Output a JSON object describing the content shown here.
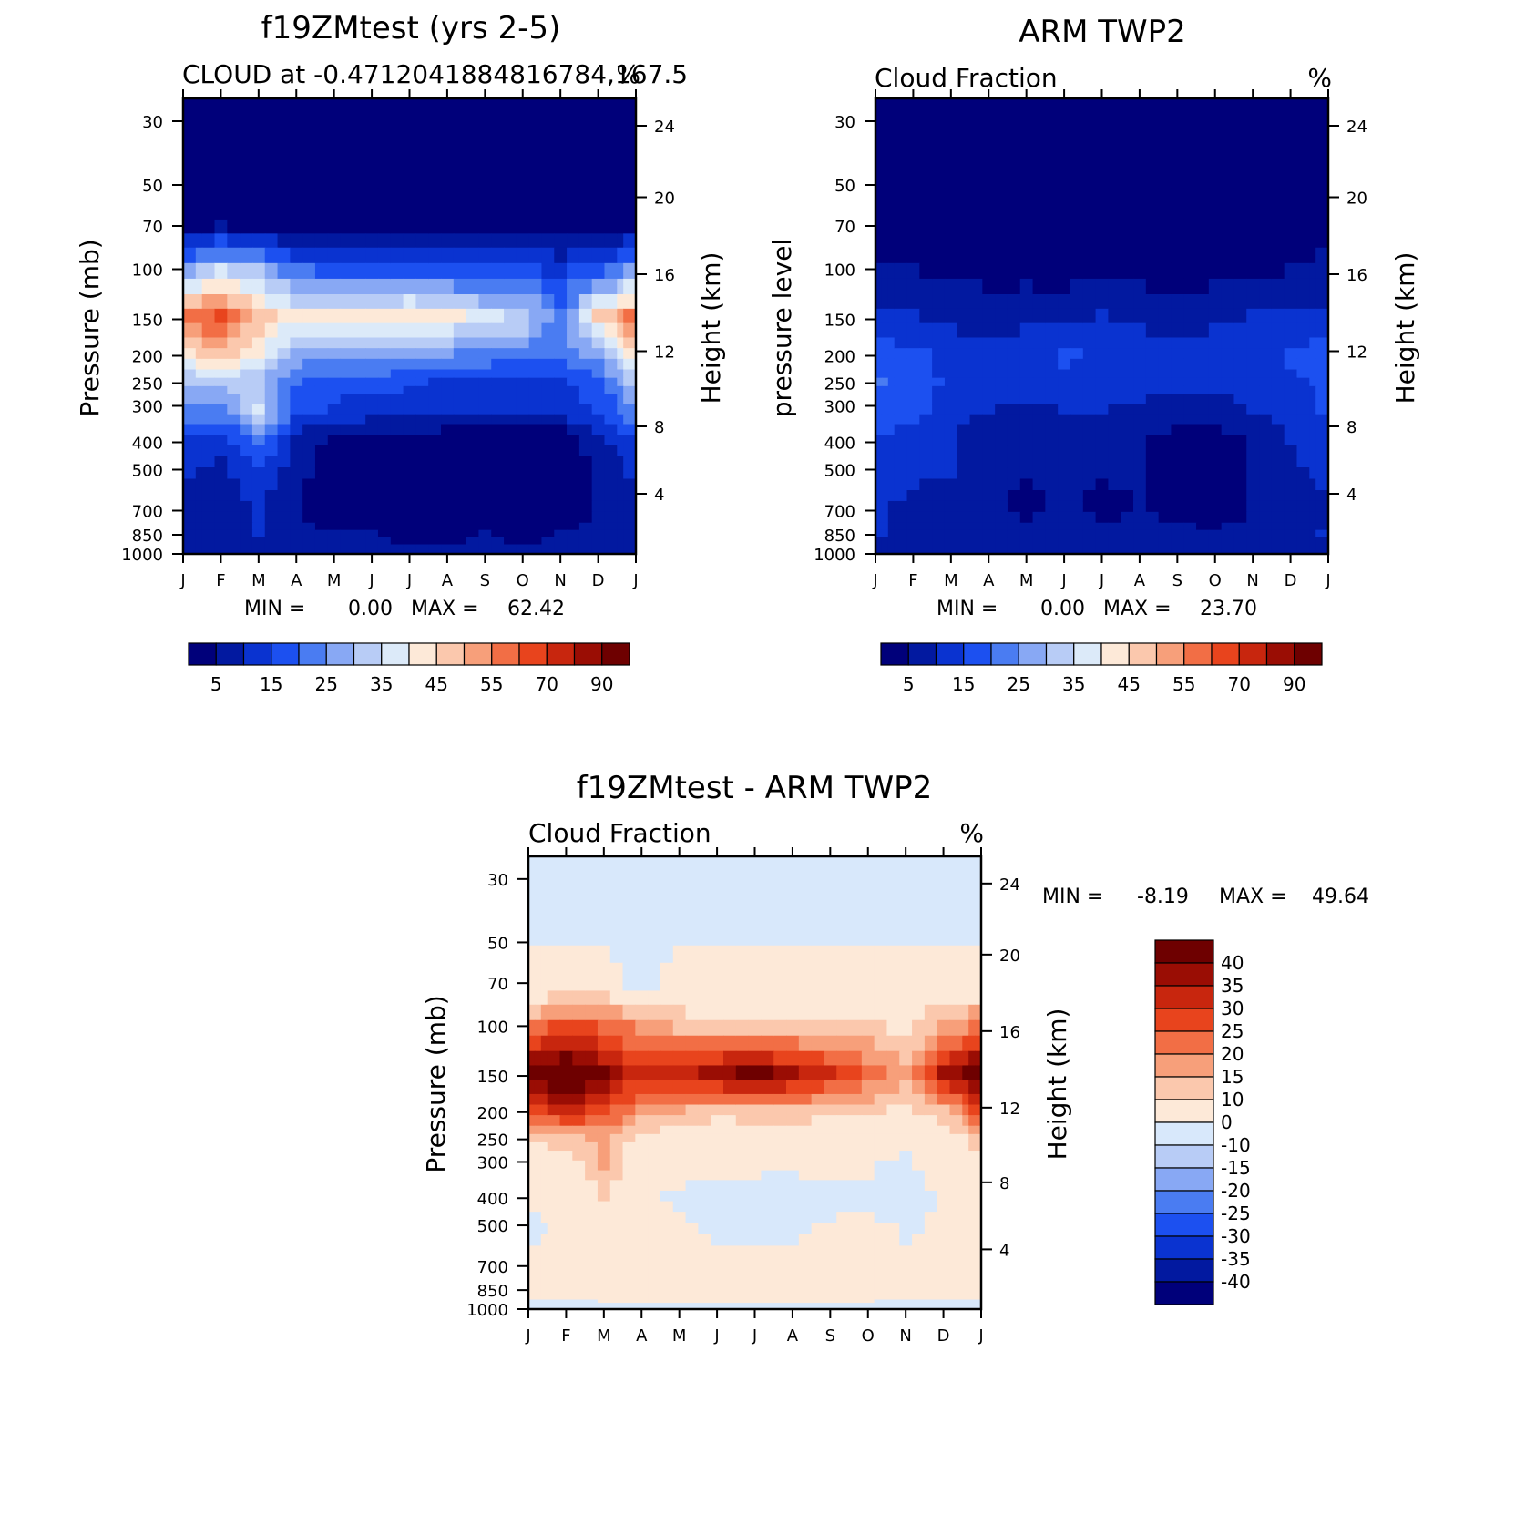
{
  "colors": {
    "seq": [
      "#00007a",
      "#0219a0",
      "#0a33d0",
      "#1c50f0",
      "#4a7cf2",
      "#88a8f4",
      "#b8ccf6",
      "#dceaf9",
      "#fde9d8",
      "#fbc8ad",
      "#f79f7a",
      "#f26e45",
      "#e8441d",
      "#c8260e",
      "#9a0d04",
      "#6e0000"
    ],
    "div": [
      "#00007a",
      "#0219a0",
      "#0a33d0",
      "#1c50f0",
      "#4a7cf2",
      "#88a8f4",
      "#b8ccf6",
      "#d8e8fb",
      "#fde9d8",
      "#fbc8ad",
      "#f79f7a",
      "#f26e45",
      "#e8441d",
      "#c8260e",
      "#9a0d04",
      "#6e0000"
    ]
  },
  "chart_data": [
    {
      "type": "heatmap",
      "title": "f19ZMtest (yrs 2-5)",
      "subtitle_left": "CLOUD at -0.4712041884816784,167.5",
      "subtitle_right": "%",
      "ylabel": "Pressure (mb)",
      "ylabel_right": "Height (km)",
      "x_ticks": [
        "J",
        "F",
        "M",
        "A",
        "M",
        "J",
        "J",
        "A",
        "S",
        "O",
        "N",
        "D",
        "J"
      ],
      "y_ticks": [
        "30",
        "50",
        "70",
        "100",
        "150",
        "200",
        "250",
        "300",
        "400",
        "500",
        "700",
        "850",
        "1000"
      ],
      "height_ticks": [
        "24",
        "20",
        "16",
        "12",
        "8",
        "4"
      ],
      "stats": {
        "min_label": "MIN =",
        "min": "0.00",
        "max_label": "MAX =",
        "max": "62.42"
      },
      "levels": [
        "5",
        "15",
        "25",
        "35",
        "45",
        "55",
        "70",
        "90"
      ],
      "level_breaks": [
        0,
        5,
        10,
        15,
        20,
        25,
        30,
        35,
        40,
        45,
        50,
        55,
        60,
        70,
        80,
        90
      ],
      "colorbar": "horizontal",
      "z": [
        [
          0,
          0,
          0,
          0,
          0,
          0,
          0,
          0,
          0,
          0,
          0,
          0,
          0
        ],
        [
          0,
          0,
          0,
          0,
          0,
          0,
          0,
          0,
          0,
          0,
          0,
          0,
          0
        ],
        [
          2,
          5,
          2,
          1,
          1,
          1,
          1,
          1,
          1,
          1,
          1,
          2,
          4
        ],
        [
          28,
          35,
          30,
          22,
          18,
          17,
          17,
          17,
          16,
          16,
          14,
          18,
          25
        ],
        [
          55,
          62,
          48,
          40,
          40,
          42,
          44,
          42,
          36,
          34,
          22,
          45,
          55
        ],
        [
          44,
          48,
          40,
          28,
          26,
          27,
          27,
          25,
          24,
          22,
          20,
          28,
          42
        ],
        [
          30,
          32,
          30,
          20,
          18,
          17,
          16,
          14,
          13,
          12,
          14,
          18,
          30
        ],
        [
          24,
          24,
          36,
          18,
          14,
          13,
          12,
          11,
          11,
          10,
          12,
          16,
          24
        ],
        [
          14,
          12,
          22,
          8,
          4,
          3,
          3,
          2,
          1,
          0,
          1,
          8,
          14
        ],
        [
          10,
          8,
          14,
          6,
          3,
          2,
          3,
          2,
          1,
          1,
          2,
          6,
          10
        ],
        [
          9,
          8,
          10,
          5,
          3,
          3,
          3,
          3,
          4,
          2,
          3,
          5,
          9
        ],
        [
          8,
          8,
          10,
          6,
          5,
          5,
          4,
          4,
          5,
          4,
          5,
          6,
          8
        ],
        [
          6,
          6,
          6,
          6,
          6,
          6,
          6,
          6,
          6,
          6,
          6,
          6,
          6
        ]
      ]
    },
    {
      "type": "heatmap",
      "title": "ARM TWP2",
      "subtitle_left": "Cloud Fraction",
      "subtitle_right": "%",
      "ylabel": "pressure level",
      "ylabel_right": "Height (km)",
      "x_ticks": [
        "J",
        "F",
        "M",
        "A",
        "M",
        "J",
        "J",
        "A",
        "S",
        "O",
        "N",
        "D",
        "J"
      ],
      "y_ticks": [
        "30",
        "50",
        "70",
        "100",
        "150",
        "200",
        "250",
        "300",
        "400",
        "500",
        "700",
        "850",
        "1000"
      ],
      "height_ticks": [
        "24",
        "20",
        "16",
        "12",
        "8",
        "4"
      ],
      "stats": {
        "min_label": "MIN =",
        "min": "0.00",
        "max_label": "MAX =",
        "max": "23.70"
      },
      "levels": [
        "5",
        "15",
        "25",
        "35",
        "45",
        "55",
        "70",
        "90"
      ],
      "level_breaks": [
        0,
        5,
        10,
        15,
        20,
        25,
        30,
        35,
        40,
        45,
        50,
        55,
        60,
        70,
        80,
        90
      ],
      "colorbar": "horizontal",
      "z": [
        [
          0,
          0,
          0,
          0,
          0,
          0,
          0,
          0,
          0,
          0,
          0,
          0,
          0
        ],
        [
          0,
          0,
          0,
          0,
          0,
          0,
          0,
          0,
          0,
          0,
          0,
          0,
          0
        ],
        [
          1,
          1,
          1,
          1,
          1,
          1,
          1,
          1,
          1,
          1,
          1,
          1,
          1
        ],
        [
          6,
          5,
          4,
          3,
          3,
          3,
          4,
          3,
          2,
          3,
          4,
          5,
          7
        ],
        [
          11,
          10,
          9,
          8,
          9,
          8,
          10,
          9,
          8,
          9,
          10,
          10,
          11
        ],
        [
          18,
          16,
          13,
          12,
          12,
          16,
          14,
          12,
          12,
          12,
          12,
          16,
          18
        ],
        [
          20,
          18,
          14,
          12,
          12,
          13,
          13,
          12,
          11,
          11,
          12,
          14,
          16
        ],
        [
          19,
          17,
          12,
          10,
          9,
          10,
          10,
          9,
          8,
          8,
          10,
          13,
          15
        ],
        [
          14,
          13,
          10,
          7,
          6,
          6,
          6,
          5,
          3,
          2,
          6,
          10,
          12
        ],
        [
          12,
          11,
          10,
          7,
          6,
          5,
          6,
          6,
          2,
          1,
          5,
          9,
          11
        ],
        [
          10,
          9,
          8,
          6,
          3,
          6,
          3,
          5,
          3,
          1,
          5,
          8,
          9
        ],
        [
          10,
          9,
          8,
          8,
          8,
          8,
          7,
          8,
          7,
          6,
          8,
          9,
          10
        ],
        [
          5,
          5,
          5,
          5,
          5,
          5,
          5,
          5,
          5,
          5,
          5,
          5,
          5
        ]
      ]
    },
    {
      "type": "heatmap",
      "title": "f19ZMtest - ARM TWP2",
      "subtitle_left": "Cloud Fraction",
      "subtitle_right": "%",
      "ylabel": "Pressure (mb)",
      "ylabel_right": "Height (km)",
      "x_ticks": [
        "J",
        "F",
        "M",
        "A",
        "M",
        "J",
        "J",
        "A",
        "S",
        "O",
        "N",
        "D",
        "J"
      ],
      "y_ticks": [
        "30",
        "50",
        "70",
        "100",
        "150",
        "200",
        "250",
        "300",
        "400",
        "500",
        "700",
        "850",
        "1000"
      ],
      "height_ticks": [
        "24",
        "20",
        "16",
        "12",
        "8",
        "4"
      ],
      "stats": {
        "min_label": "MIN =",
        "min": "-8.19",
        "max_label": "MAX =",
        "max": "49.64"
      },
      "levels": [
        "40",
        "35",
        "30",
        "25",
        "20",
        "15",
        "10",
        "0",
        "-10",
        "-15",
        "-20",
        "-25",
        "-30",
        "-35",
        "-40"
      ],
      "level_breaks": [
        -1000,
        -40,
        -35,
        -30,
        -25,
        -20,
        -15,
        -10,
        0,
        10,
        15,
        20,
        25,
        30,
        35,
        40
      ],
      "colorbar": "vertical",
      "z": [
        [
          -1,
          -1,
          -1,
          -1,
          -1,
          -1,
          -1,
          -1,
          -1,
          -1,
          -1,
          -1,
          -1
        ],
        [
          -1,
          -1,
          -1,
          -1,
          -1,
          -1,
          -1,
          -1,
          -1,
          -1,
          -1,
          -1,
          -1
        ],
        [
          3,
          3,
          3,
          -2,
          3,
          3,
          3,
          3,
          3,
          3,
          3,
          3,
          3
        ],
        [
          20,
          28,
          24,
          18,
          14,
          12,
          13,
          13,
          12,
          11,
          9,
          16,
          22
        ],
        [
          44,
          48,
          40,
          32,
          32,
          38,
          42,
          36,
          30,
          24,
          15,
          36,
          44
        ],
        [
          26,
          32,
          27,
          17,
          15,
          12,
          14,
          14,
          13,
          11,
          9,
          14,
          26
        ],
        [
          10,
          14,
          16,
          8,
          5,
          4,
          4,
          3,
          3,
          2,
          2,
          4,
          12
        ],
        [
          5,
          6,
          16,
          4,
          3,
          2,
          1,
          1,
          2,
          1,
          -2,
          4,
          6
        ],
        [
          1,
          1,
          10,
          1,
          -1,
          -2,
          -2,
          -3,
          -2,
          -2,
          -3,
          1,
          2
        ],
        [
          -1,
          1,
          4,
          1,
          1,
          -2,
          -2,
          -2,
          1,
          2,
          -1,
          1,
          1
        ],
        [
          1,
          1,
          2,
          2,
          3,
          3,
          3,
          2,
          2,
          2,
          1,
          2,
          1
        ],
        [
          1,
          1,
          2,
          2,
          2,
          2,
          2,
          2,
          2,
          2,
          1,
          1,
          1
        ],
        [
          -1,
          -1,
          -1,
          -1,
          -1,
          -1,
          -1,
          -1,
          -1,
          -1,
          -1,
          -1,
          -1
        ]
      ]
    }
  ]
}
